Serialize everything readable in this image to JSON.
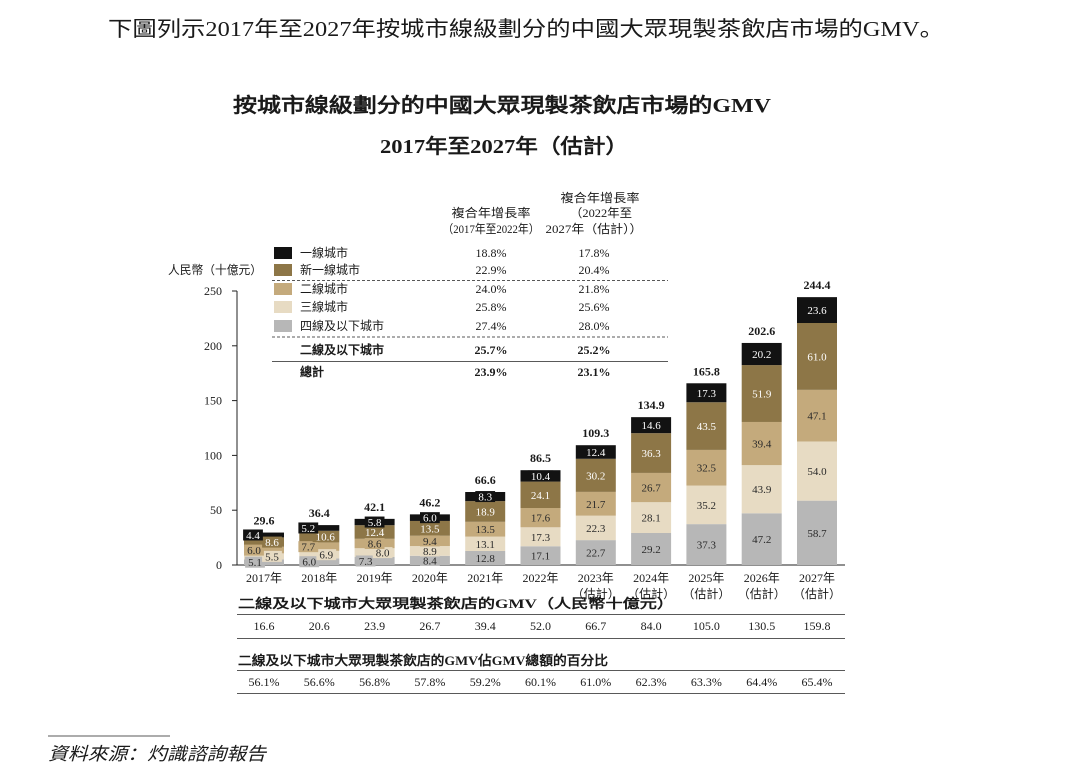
{
  "intro_text": "下圖列示2017年至2027年按城市線級劃分的中國大眾現製茶飲店市場的GMV。",
  "chart_data": {
    "type": "bar",
    "stacked": true,
    "title": "按城市線級劃分的中國大眾現製茶飲店市場的GMV",
    "subtitle": "2017年至2027年（估計）",
    "xlabel": "",
    "ylabel": "人民幣（十億元）",
    "ylim": [
      0,
      250
    ],
    "yticks": [
      0,
      50,
      100,
      150,
      200,
      250
    ],
    "grid": false,
    "legend_position": "top-left",
    "categories": [
      "2017年",
      "2018年",
      "2019年",
      "2020年",
      "2021年",
      "2022年",
      "2023年",
      "2024年",
      "2025年",
      "2026年",
      "2027年"
    ],
    "category_notes": [
      "",
      "",
      "",
      "",
      "",
      "",
      "（估計）",
      "（估計）",
      "（估計）",
      "（估計）",
      "（估計）"
    ],
    "series": [
      {
        "name": "一線城市",
        "color": "#121212",
        "label_color": "#ffffff",
        "values": [
          4.4,
          5.2,
          5.8,
          6.0,
          8.3,
          10.4,
          12.4,
          14.6,
          17.3,
          20.2,
          23.6
        ],
        "cagr": [
          "18.8%",
          "17.8%"
        ]
      },
      {
        "name": "新一線城市",
        "color": "#8d7647",
        "label_color": "#ffffff",
        "values": [
          8.6,
          10.6,
          12.4,
          13.5,
          18.9,
          24.1,
          30.2,
          36.3,
          43.5,
          51.9,
          61.0
        ],
        "cagr": [
          "22.9%",
          "20.4%"
        ]
      },
      {
        "name": "二線城市",
        "color": "#c4aa7c",
        "label_color": "#2a2a2a",
        "values": [
          6.0,
          7.7,
          8.6,
          9.4,
          13.5,
          17.6,
          21.7,
          26.7,
          32.5,
          39.4,
          47.1
        ],
        "cagr": [
          "24.0%",
          "21.8%"
        ]
      },
      {
        "name": "三線城市",
        "color": "#e7dbc3",
        "label_color": "#2a2a2a",
        "values": [
          5.5,
          6.9,
          8.0,
          8.9,
          13.1,
          17.3,
          22.3,
          28.1,
          35.2,
          43.9,
          54.0
        ],
        "cagr": [
          "25.8%",
          "25.6%"
        ]
      },
      {
        "name": "四線及以下城市",
        "color": "#b7b7b7",
        "label_color": "#2a2a2a",
        "values": [
          5.1,
          6.0,
          7.3,
          8.4,
          12.8,
          17.1,
          22.7,
          29.2,
          37.3,
          47.2,
          58.7
        ],
        "cagr": [
          "27.4%",
          "28.0%"
        ]
      }
    ],
    "totals": [
      29.6,
      36.4,
      42.1,
      46.2,
      66.6,
      86.5,
      109.3,
      134.9,
      165.8,
      202.6,
      244.4
    ],
    "cagr_headers": [
      [
        "複合年增長率",
        "（2017年至2022年）"
      ],
      [
        "複合年增長率",
        "（2022年至",
        "2027年（估計））"
      ]
    ],
    "cagr_aggregates": [
      {
        "label": "二線及以下城市",
        "cagr": [
          "25.7%",
          "25.2%"
        ]
      },
      {
        "label": "總計",
        "cagr": [
          "23.9%",
          "23.1%"
        ]
      }
    ],
    "data_table": [
      {
        "title": "二線及以下城市大眾現製茶飲店的GMV（人民幣十億元）",
        "values": [
          16.6,
          20.6,
          23.9,
          26.7,
          39.4,
          52.0,
          66.7,
          84.0,
          105.0,
          130.5,
          159.8
        ]
      },
      {
        "title": "二線及以下城市大眾現製茶飲店的GMV佔GMV總額的百分比",
        "values": [
          "56.1%",
          "56.6%",
          "56.8%",
          "57.8%",
          "59.2%",
          "60.1%",
          "61.0%",
          "62.3%",
          "63.3%",
          "64.4%",
          "65.4%"
        ]
      }
    ]
  },
  "source": "資料來源：灼識諮詢報告"
}
